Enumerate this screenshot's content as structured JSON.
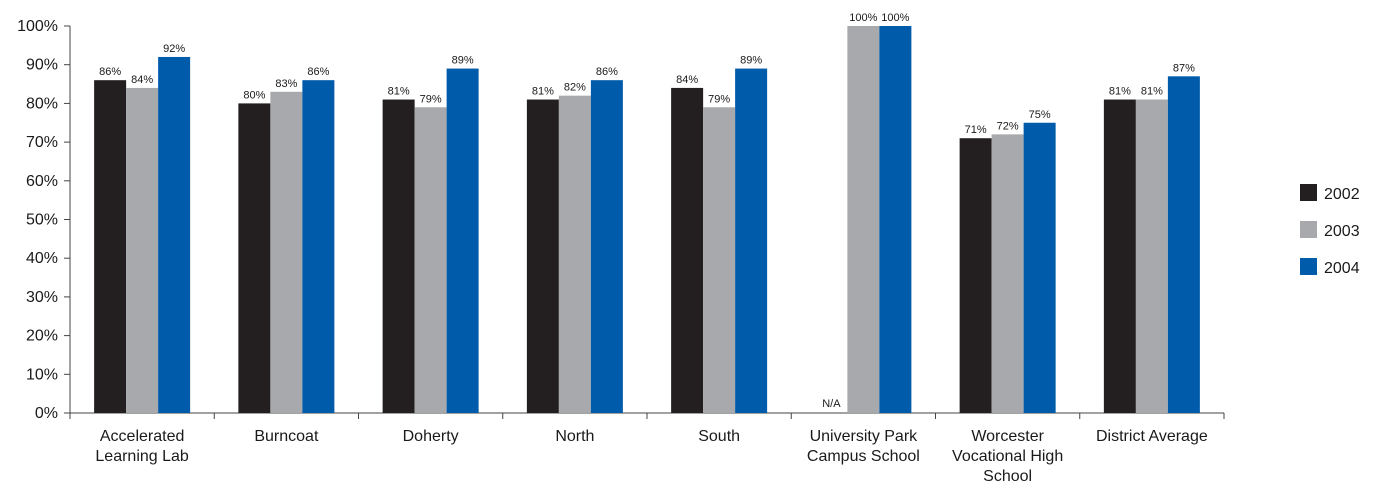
{
  "chart_data": {
    "type": "bar",
    "title": "",
    "xlabel": "",
    "ylabel": "",
    "ylim": [
      0,
      100
    ],
    "y_ticks": [
      "0%",
      "10%",
      "20%",
      "30%",
      "40%",
      "50%",
      "60%",
      "70%",
      "80%",
      "90%",
      "100%"
    ],
    "grid": false,
    "legend_position": "right",
    "categories": [
      [
        "Accelerated",
        "Learning Lab"
      ],
      [
        "Burncoat"
      ],
      [
        "Doherty"
      ],
      [
        "North"
      ],
      [
        "South"
      ],
      [
        "University Park",
        "Campus School"
      ],
      [
        "Worcester",
        "Vocational High",
        "School"
      ],
      [
        "District Average"
      ]
    ],
    "series": [
      {
        "name": "2002",
        "color": "#231f20",
        "values": [
          86,
          80,
          81,
          81,
          84,
          null,
          71,
          81
        ],
        "labels": [
          "86%",
          "80%",
          "81%",
          "81%",
          "84%",
          "N/A",
          "71%",
          "81%"
        ]
      },
      {
        "name": "2003",
        "color": "#a7a9ac",
        "values": [
          84,
          83,
          79,
          82,
          79,
          100,
          72,
          81
        ],
        "labels": [
          "84%",
          "83%",
          "79%",
          "82%",
          "79%",
          "100%",
          "72%",
          "81%"
        ]
      },
      {
        "name": "2004",
        "color": "#005baa",
        "values": [
          92,
          86,
          89,
          86,
          89,
          100,
          75,
          87
        ],
        "labels": [
          "92%",
          "86%",
          "89%",
          "86%",
          "89%",
          "100%",
          "75%",
          "87%"
        ]
      }
    ]
  }
}
